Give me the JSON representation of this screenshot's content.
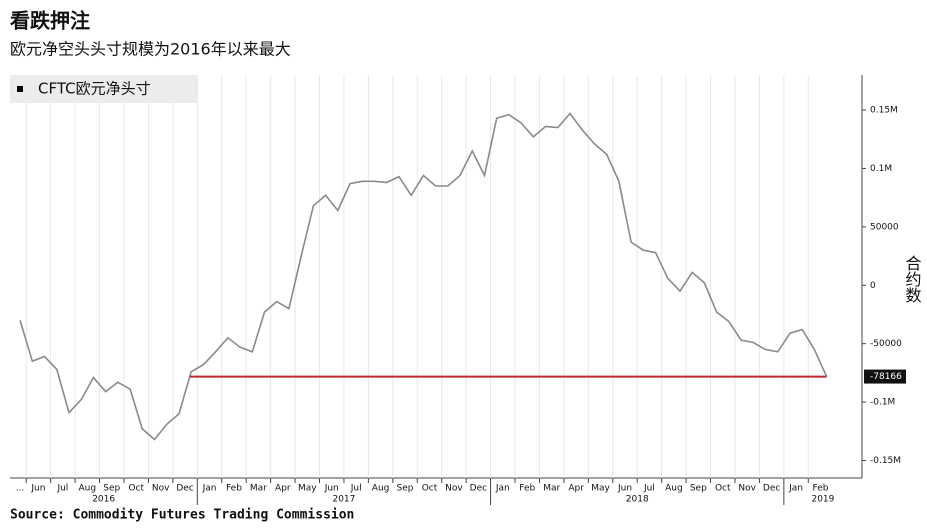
{
  "chart_data": {
    "type": "line",
    "title": "看跌押注",
    "subtitle": "欧元净空头头寸规模为2016年以来最大",
    "source": "Source: Commodity Futures Trading Commission",
    "y_label": "合约数",
    "categories": [
      "...",
      "Jun",
      null,
      "Jul",
      null,
      "Aug",
      null,
      "Sep",
      null,
      "Oct",
      null,
      "Nov",
      null,
      "Dec",
      null,
      "Jan",
      null,
      "Feb",
      null,
      "Mar",
      null,
      "Apr",
      null,
      "May",
      null,
      "Jun",
      null,
      "Jul",
      null,
      "Aug",
      null,
      "Sep",
      null,
      "Oct",
      null,
      "Nov",
      null,
      "Dec",
      null,
      "Jan",
      null,
      "Feb",
      null,
      "Mar",
      null,
      "Apr",
      null,
      "May",
      null,
      "Jun",
      null,
      "Jul",
      null,
      "Aug",
      null,
      "Sep",
      null,
      "Oct",
      null,
      "Nov",
      null,
      "Dec",
      null,
      "Jan",
      null,
      "Feb",
      null
    ],
    "years": [
      "2016",
      "2017",
      "2018",
      "2019"
    ],
    "series": [
      {
        "name": "CFTC欧元净头寸",
        "color": "#8a8a8a",
        "values": [
          -30000,
          -65000,
          -61000,
          -72000,
          -109000,
          -98000,
          -79000,
          -91000,
          -83000,
          -89000,
          -123000,
          -132000,
          -119000,
          -110000,
          -74000,
          -68000,
          -57000,
          -45000,
          -53000,
          -57000,
          -23000,
          -14000,
          -20000,
          25000,
          68000,
          77000,
          64000,
          87000,
          89000,
          89000,
          88000,
          93000,
          77000,
          94000,
          85000,
          85000,
          94000,
          115000,
          94000,
          143000,
          146000,
          139000,
          127000,
          136000,
          135000,
          147000,
          133000,
          121000,
          112000,
          89000,
          37000,
          30000,
          28000,
          6000,
          -5000,
          11000,
          2000,
          -23000,
          -31000,
          -47000,
          -49000,
          -55000,
          -57000,
          -41000,
          -38000,
          -55000,
          -78166
        ]
      }
    ],
    "ylim": [
      -165000,
      180000
    ],
    "yticks": [
      {
        "value": 150000,
        "label": "0.15M"
      },
      {
        "value": 100000,
        "label": "0.1M"
      },
      50000,
      0,
      -50000,
      {
        "value": -100000,
        "label": "-0.1M"
      },
      {
        "value": -150000,
        "label": "-0.15M"
      }
    ],
    "grid": "x",
    "legend": "top-left",
    "reference_line": {
      "color": "#c0282d"
    }
  }
}
